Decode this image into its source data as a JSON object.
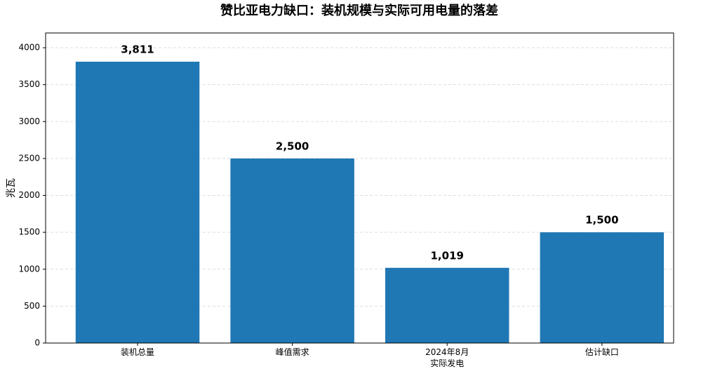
{
  "chart_data": {
    "type": "bar",
    "title": "赞比亚电力缺口：装机规模与实际可用电量的落差",
    "y_label": "兆瓦",
    "categories": [
      "装机总量",
      "峰值需求",
      "2024年8月\n实际发电",
      "估计缺口"
    ],
    "values": [
      3811,
      2500,
      1019,
      1500
    ],
    "value_labels": [
      "3,811",
      "2,500",
      "1,019",
      "1,500"
    ],
    "color": "#1f77b4",
    "ylim": [
      0,
      4200
    ],
    "yticks": [
      0,
      500,
      1000,
      1500,
      2000,
      2500,
      3000,
      3500,
      4000
    ],
    "grid": true
  }
}
